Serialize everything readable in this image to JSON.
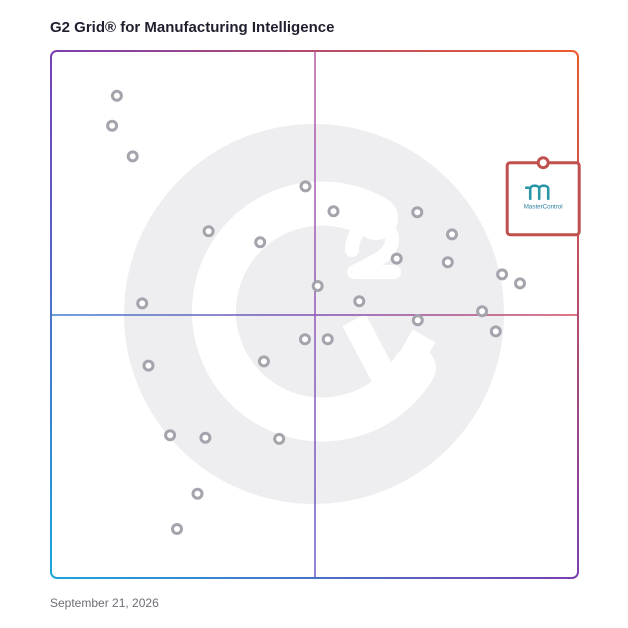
{
  "title": "G2 Grid® for Manufacturing Intelligence",
  "date": "September 21, 2026",
  "colors": {
    "watermark": "#eeeef1",
    "dot": "#a4a4ad",
    "highlight": "#c0504d",
    "brand": "#2a96a6"
  },
  "chart_data": {
    "type": "scatter",
    "title": "G2 Grid® for Manufacturing Intelligence",
    "xlabel": "",
    "ylabel": "",
    "xlim": [
      0,
      100
    ],
    "ylim": [
      0,
      100
    ],
    "grid": "quadrants",
    "points": [
      {
        "x": 12.5,
        "y": 91.5
      },
      {
        "x": 11.6,
        "y": 85.8
      },
      {
        "x": 15.5,
        "y": 80.0
      },
      {
        "x": 29.9,
        "y": 65.8
      },
      {
        "x": 39.7,
        "y": 63.7
      },
      {
        "x": 48.3,
        "y": 74.3
      },
      {
        "x": 53.6,
        "y": 69.6
      },
      {
        "x": 50.6,
        "y": 55.4
      },
      {
        "x": 58.5,
        "y": 52.5
      },
      {
        "x": 65.6,
        "y": 60.6
      },
      {
        "x": 69.5,
        "y": 69.4
      },
      {
        "x": 76.1,
        "y": 65.2
      },
      {
        "x": 75.3,
        "y": 59.9
      },
      {
        "x": 85.6,
        "y": 57.6
      },
      {
        "x": 89.0,
        "y": 55.9
      },
      {
        "x": 81.8,
        "y": 50.6
      },
      {
        "x": 69.6,
        "y": 48.9
      },
      {
        "x": 84.4,
        "y": 46.8
      },
      {
        "x": 17.3,
        "y": 52.1
      },
      {
        "x": 48.2,
        "y": 45.3
      },
      {
        "x": 52.5,
        "y": 45.3
      },
      {
        "x": 18.5,
        "y": 40.3
      },
      {
        "x": 40.4,
        "y": 41.1
      },
      {
        "x": 22.6,
        "y": 27.1
      },
      {
        "x": 29.3,
        "y": 26.6
      },
      {
        "x": 43.3,
        "y": 26.4
      },
      {
        "x": 27.8,
        "y": 16.0
      },
      {
        "x": 23.9,
        "y": 9.3
      }
    ],
    "highlighted": {
      "name": "MasterControl",
      "x": 93.4,
      "y": 78.8
    }
  }
}
